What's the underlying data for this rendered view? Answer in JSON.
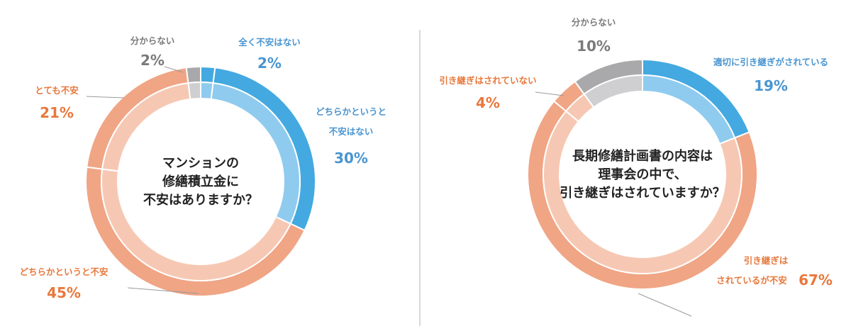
{
  "chart_data": [
    {
      "type": "donut",
      "title": "マンションの修繕積立金に不安はありますか？",
      "title_lines": [
        "マンションの",
        "修繕積立金に",
        "不安はありますか？"
      ],
      "slices": [
        {
          "label_lines": [
            "全く不安はない"
          ],
          "pct_label": "2%",
          "value": 2,
          "outer": "#43a9e0",
          "inner": "#8fcbee",
          "text_color": "#4a95d0"
        },
        {
          "label_lines": [
            "どちらかというと",
            "不安はない"
          ],
          "pct_label": "30%",
          "value": 30,
          "outer": "#43a9e0",
          "inner": "#8fcbee",
          "text_color": "#4a95d0"
        },
        {
          "label_lines": [
            "どちらかというと不安"
          ],
          "pct_label": "45%",
          "value": 45,
          "outer": "#f0a585",
          "inner": "#f6c8b3",
          "text_color": "#e8783c"
        },
        {
          "label_lines": [
            "とても不安"
          ],
          "pct_label": "21%",
          "value": 21,
          "outer": "#f0a585",
          "inner": "#f6c8b3",
          "text_color": "#e8783c"
        },
        {
          "label_lines": [
            "分からない"
          ],
          "pct_label": "2%",
          "value": 2,
          "outer": "#a9a9ab",
          "inner": "#cfcfd1",
          "text_color": "#7a7a7a"
        }
      ]
    },
    {
      "type": "donut",
      "title": "長期修繕計画書の内容は理事会の中で、引き継ぎはされていますか？",
      "title_lines": [
        "長期修繕計画書の内容は",
        "理事会の中で、",
        "引き継ぎはされていますか？"
      ],
      "slices": [
        {
          "label_lines": [
            "適切に引き継ぎがされている"
          ],
          "pct_label": "19%",
          "value": 19,
          "outer": "#43a9e0",
          "inner": "#8fcbee",
          "text_color": "#4a95d0"
        },
        {
          "label_lines": [
            "引き継ぎは",
            "されているが不安"
          ],
          "pct_label": "67%",
          "value": 67,
          "outer": "#f0a585",
          "inner": "#f6c8b3",
          "text_color": "#e8783c"
        },
        {
          "label_lines": [
            "引き継ぎはされていない"
          ],
          "pct_label": "4%",
          "value": 4,
          "outer": "#f0a585",
          "inner": "#f6c8b3",
          "text_color": "#e8783c"
        },
        {
          "label_lines": [
            "分からない"
          ],
          "pct_label": "10%",
          "value": 10,
          "outer": "#a9a9ab",
          "inner": "#cfcfd1",
          "text_color": "#7a7a7a"
        }
      ]
    }
  ]
}
